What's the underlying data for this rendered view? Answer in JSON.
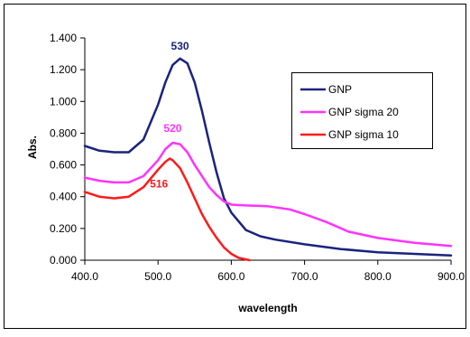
{
  "chart_data": {
    "type": "line",
    "xlabel": "wavelength",
    "ylabel": "Abs.",
    "xlim": [
      400,
      900
    ],
    "ylim": [
      0,
      1.4
    ],
    "x_ticks": [
      "400.0",
      "500.0",
      "600.0",
      "700.0",
      "800.0",
      "900.0"
    ],
    "y_ticks": [
      "0.000",
      "0.200",
      "0.400",
      "0.600",
      "0.800",
      "1.000",
      "1.200",
      "1.400"
    ],
    "grid": false,
    "legend_position": "top-right",
    "series": [
      {
        "name": "GNP",
        "color": "#1a237e",
        "x": [
          400,
          420,
          440,
          460,
          480,
          500,
          510,
          520,
          530,
          540,
          550,
          560,
          570,
          580,
          590,
          600,
          620,
          640,
          660,
          700,
          750,
          800,
          850,
          900
        ],
        "y": [
          0.72,
          0.69,
          0.68,
          0.68,
          0.76,
          0.98,
          1.12,
          1.23,
          1.27,
          1.24,
          1.12,
          0.94,
          0.74,
          0.55,
          0.39,
          0.3,
          0.19,
          0.15,
          0.13,
          0.1,
          0.07,
          0.05,
          0.04,
          0.03
        ]
      },
      {
        "name": "GNP sigma 20",
        "color": "#ff33ff",
        "x": [
          400,
          420,
          440,
          460,
          480,
          500,
          510,
          520,
          530,
          540,
          550,
          560,
          570,
          580,
          590,
          600,
          620,
          650,
          680,
          700,
          730,
          760,
          800,
          850,
          900
        ],
        "y": [
          0.52,
          0.5,
          0.49,
          0.49,
          0.53,
          0.63,
          0.7,
          0.74,
          0.73,
          0.68,
          0.6,
          0.53,
          0.46,
          0.41,
          0.37,
          0.35,
          0.345,
          0.34,
          0.32,
          0.29,
          0.24,
          0.18,
          0.14,
          0.11,
          0.09
        ]
      },
      {
        "name": "GNP sigma 10",
        "color": "#ff1a1a",
        "x": [
          400,
          420,
          440,
          460,
          480,
          500,
          510,
          516,
          520,
          530,
          540,
          550,
          560,
          570,
          580,
          590,
          600,
          610,
          620,
          625
        ],
        "y": [
          0.43,
          0.4,
          0.39,
          0.4,
          0.46,
          0.57,
          0.62,
          0.64,
          0.63,
          0.58,
          0.49,
          0.39,
          0.29,
          0.21,
          0.14,
          0.08,
          0.04,
          0.015,
          0.005,
          0.0
        ]
      }
    ],
    "annotations": [
      {
        "text": "530",
        "x": 530,
        "y": 1.27,
        "color": "#1a237e"
      },
      {
        "text": "520",
        "x": 520,
        "y": 0.74,
        "color": "#ff33ff"
      },
      {
        "text": "516",
        "x": 516,
        "y": 0.64,
        "color": "#ff1a1a"
      }
    ]
  }
}
